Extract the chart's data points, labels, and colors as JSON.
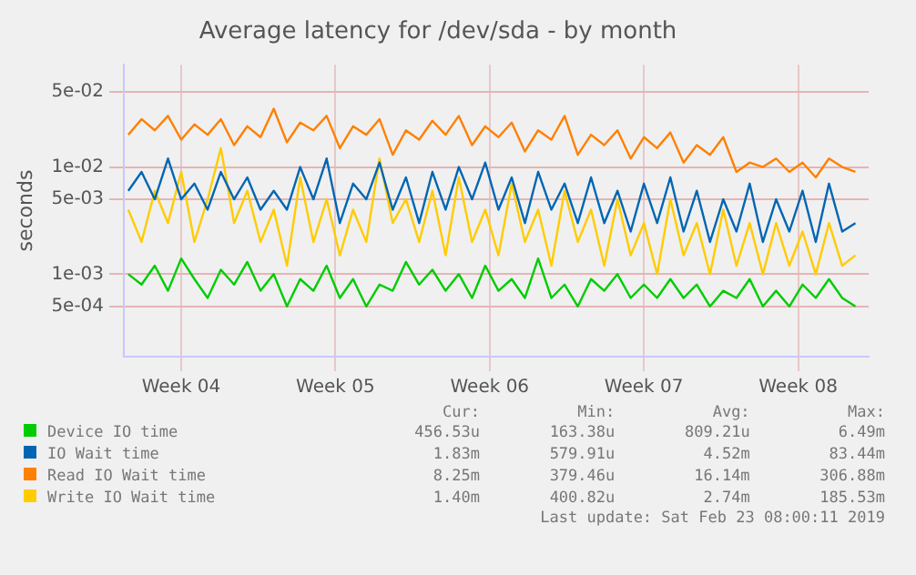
{
  "chart_data": {
    "type": "line",
    "title": "Average latency for /dev/sda - by month",
    "ylabel": "seconds",
    "log": "y",
    "grid": true,
    "legend": "bottom",
    "marker": "none",
    "line_style": "solid",
    "xlim": [
      "2019-01-20T09:36",
      "2019-02-23T04:48"
    ],
    "xticks": [
      {
        "value": "2019-01-23",
        "label": "Week 04"
      },
      {
        "value": "2019-01-30",
        "label": "Week 05"
      },
      {
        "value": "2019-02-06",
        "label": "Week 06"
      },
      {
        "value": "2019-02-13",
        "label": "Week 07"
      },
      {
        "value": "2019-02-20",
        "label": "Week 08"
      }
    ],
    "ylim": [
      0.00017,
      0.09
    ],
    "yticks": [
      {
        "value": 0.0005,
        "label": "5e-04"
      },
      {
        "value": 0.001,
        "label": "1e-03"
      },
      {
        "value": 0.005,
        "label": "5e-03"
      },
      {
        "value": 0.01,
        "label": "1e-02"
      },
      {
        "value": 0.05,
        "label": "5e-02"
      }
    ],
    "x": [
      "2019-01-20T14:24",
      "2019-01-21T04:48",
      "2019-01-21T19:12",
      "2019-01-22T09:36",
      "2019-01-23T00:00",
      "2019-01-23T14:24",
      "2019-01-24T04:48",
      "2019-01-24T19:12",
      "2019-01-25T09:36",
      "2019-01-26T00:00",
      "2019-01-26T14:24",
      "2019-01-27T04:48",
      "2019-01-27T19:12",
      "2019-01-28T09:36",
      "2019-01-29T00:00",
      "2019-01-29T14:24",
      "2019-01-30T04:48",
      "2019-01-30T19:12",
      "2019-01-31T09:36",
      "2019-02-01T00:00",
      "2019-02-01T14:24",
      "2019-02-02T04:48",
      "2019-02-02T19:12",
      "2019-02-03T09:36",
      "2019-02-04T00:00",
      "2019-02-04T14:24",
      "2019-02-05T04:48",
      "2019-02-05T19:12",
      "2019-02-06T09:36",
      "2019-02-07T00:00",
      "2019-02-07T14:24",
      "2019-02-08T04:48",
      "2019-02-08T19:12",
      "2019-02-09T09:36",
      "2019-02-10T00:00",
      "2019-02-10T14:24",
      "2019-02-11T04:48",
      "2019-02-11T19:12",
      "2019-02-12T09:36",
      "2019-02-13T00:00",
      "2019-02-13T14:24",
      "2019-02-14T04:48",
      "2019-02-14T19:12",
      "2019-02-15T09:36",
      "2019-02-16T00:00",
      "2019-02-16T14:24",
      "2019-02-17T04:48",
      "2019-02-17T19:12",
      "2019-02-18T09:36",
      "2019-02-19T00:00",
      "2019-02-19T14:24",
      "2019-02-20T04:48",
      "2019-02-20T19:12",
      "2019-02-21T09:36",
      "2019-02-22T00:00",
      "2019-02-22T14:24"
    ],
    "series": [
      {
        "name": "Device IO time",
        "color": "#00cc00",
        "values": [
          0.001,
          0.0008,
          0.0012,
          0.0007,
          0.0014,
          0.0009,
          0.0006,
          0.0011,
          0.0008,
          0.0013,
          0.0007,
          0.001,
          0.0005,
          0.0009,
          0.0007,
          0.0012,
          0.0006,
          0.0009,
          0.0005,
          0.0008,
          0.0007,
          0.0013,
          0.0008,
          0.0011,
          0.0007,
          0.001,
          0.0006,
          0.0012,
          0.0007,
          0.0009,
          0.0006,
          0.0014,
          0.0006,
          0.0008,
          0.0005,
          0.0009,
          0.0007,
          0.001,
          0.0006,
          0.0008,
          0.0006,
          0.0009,
          0.0006,
          0.0008,
          0.0005,
          0.0007,
          0.0006,
          0.0009,
          0.0005,
          0.0007,
          0.0005,
          0.0008,
          0.0006,
          0.0009,
          0.0006,
          0.0005
        ]
      },
      {
        "name": "IO Wait time",
        "color": "#0066b3",
        "values": [
          0.006,
          0.009,
          0.005,
          0.012,
          0.005,
          0.007,
          0.004,
          0.009,
          0.005,
          0.008,
          0.004,
          0.006,
          0.004,
          0.01,
          0.005,
          0.012,
          0.003,
          0.007,
          0.005,
          0.011,
          0.004,
          0.008,
          0.003,
          0.009,
          0.004,
          0.01,
          0.005,
          0.011,
          0.004,
          0.008,
          0.003,
          0.009,
          0.004,
          0.007,
          0.003,
          0.008,
          0.003,
          0.006,
          0.0025,
          0.007,
          0.003,
          0.008,
          0.0025,
          0.006,
          0.002,
          0.005,
          0.0025,
          0.007,
          0.002,
          0.005,
          0.0025,
          0.006,
          0.002,
          0.007,
          0.0025,
          0.003
        ]
      },
      {
        "name": "Read IO Wait time",
        "color": "#ff8000",
        "values": [
          0.02,
          0.028,
          0.022,
          0.03,
          0.018,
          0.025,
          0.02,
          0.028,
          0.016,
          0.024,
          0.019,
          0.035,
          0.017,
          0.026,
          0.022,
          0.03,
          0.015,
          0.024,
          0.02,
          0.028,
          0.013,
          0.022,
          0.018,
          0.027,
          0.02,
          0.03,
          0.016,
          0.024,
          0.019,
          0.026,
          0.014,
          0.022,
          0.018,
          0.03,
          0.013,
          0.02,
          0.016,
          0.022,
          0.012,
          0.019,
          0.015,
          0.021,
          0.011,
          0.016,
          0.013,
          0.019,
          0.009,
          0.011,
          0.01,
          0.012,
          0.009,
          0.011,
          0.008,
          0.012,
          0.01,
          0.009
        ]
      },
      {
        "name": "Write IO Wait time",
        "color": "#ffcc00",
        "values": [
          0.004,
          0.002,
          0.006,
          0.003,
          0.009,
          0.002,
          0.005,
          0.015,
          0.003,
          0.006,
          0.002,
          0.004,
          0.0012,
          0.008,
          0.002,
          0.005,
          0.0015,
          0.004,
          0.002,
          0.012,
          0.003,
          0.005,
          0.002,
          0.006,
          0.0015,
          0.008,
          0.002,
          0.004,
          0.0015,
          0.007,
          0.002,
          0.004,
          0.0012,
          0.006,
          0.002,
          0.004,
          0.0012,
          0.005,
          0.0015,
          0.003,
          0.001,
          0.005,
          0.0015,
          0.003,
          0.001,
          0.004,
          0.0012,
          0.003,
          0.001,
          0.003,
          0.0012,
          0.0025,
          0.001,
          0.003,
          0.0012,
          0.0015
        ]
      }
    ],
    "annotations": [
      "Cur:",
      "Min:",
      "Avg:",
      "Max:",
      "456.53u",
      "163.38u",
      "809.21u",
      "6.49m",
      "1.83m",
      "579.91u",
      "4.52m",
      "83.44m",
      "8.25m",
      "379.46u",
      "16.14m",
      "306.88m",
      "1.40m",
      "400.82u",
      "2.74m",
      "185.53m",
      "Last update: Sat Feb 23 08:00:11 2019"
    ]
  }
}
